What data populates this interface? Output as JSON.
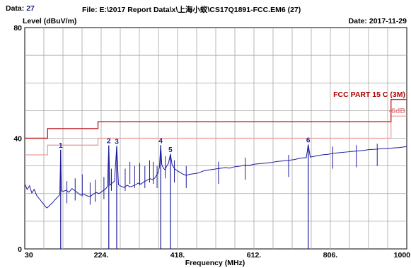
{
  "header": {
    "data_label": "Data:",
    "data_number": "27",
    "file_label": "File:",
    "file_path": "E:\\2017 Report Data\\x\\上海小蚁\\CS17Q1891-FCC.EM6  (27)",
    "date_label": "Date:",
    "date_value": "2017-11-29"
  },
  "colors": {
    "trace": "#1c1c9c",
    "limit": "#c0282a",
    "margin": "#ea9a9a",
    "grid": "#a6a6a6",
    "marker": "#1c1c9c"
  },
  "chart_data": {
    "type": "line",
    "title": "",
    "ylabel": "Level (dBuV/m)",
    "xlabel": "Frequency (MHz)",
    "xlim": [
      30,
      1000
    ],
    "ylim": [
      0,
      80
    ],
    "x_ticks": [
      "30",
      "224.",
      "418.",
      "612.",
      "806.",
      "1000"
    ],
    "y_ticks": [
      "0",
      "40",
      "80"
    ],
    "grid": true,
    "limit_line": {
      "name": "FCC PART 15 C (3M)",
      "points": [
        [
          30,
          40
        ],
        [
          88,
          40
        ],
        [
          88,
          43.5
        ],
        [
          216,
          43.5
        ],
        [
          216,
          46
        ],
        [
          960,
          46
        ],
        [
          960,
          54
        ],
        [
          1000,
          54
        ]
      ]
    },
    "margin_line": {
      "name": "-6dB",
      "points": [
        [
          30,
          34
        ],
        [
          88,
          34
        ],
        [
          88,
          37.5
        ],
        [
          216,
          37.5
        ],
        [
          216,
          40
        ],
        [
          960,
          40
        ],
        [
          960,
          48
        ],
        [
          1000,
          48
        ]
      ]
    },
    "markers": [
      {
        "label": "1",
        "x": 121.2,
        "y": 35.8
      },
      {
        "label": "2",
        "x": 243.4,
        "y": 37.4
      },
      {
        "label": "3",
        "x": 263.5,
        "y": 37.2
      },
      {
        "label": "4",
        "x": 375.2,
        "y": 37.5
      },
      {
        "label": "5",
        "x": 399.9,
        "y": 34.3
      },
      {
        "label": "6",
        "x": 749.8,
        "y": 37.7
      }
    ],
    "series": [
      {
        "x": [
          30,
          36,
          42,
          48,
          54,
          60,
          64,
          70,
          74,
          78,
          82,
          86,
          90,
          95,
          100,
          105,
          110,
          115,
          119,
          121.2,
          123,
          128,
          135,
          142,
          150,
          158,
          165,
          172,
          180,
          188,
          196,
          204,
          212,
          218,
          224,
          230,
          236,
          240,
          243.4,
          246,
          252,
          258,
          263.5,
          268,
          275,
          282,
          290,
          298,
          305,
          312,
          318,
          325,
          332,
          340,
          348,
          356,
          362,
          368,
          372,
          375.2,
          378,
          382,
          386,
          390,
          395,
          399.9,
          404,
          410,
          418,
          425,
          432,
          440,
          450,
          460,
          470,
          480,
          490,
          500,
          510,
          520,
          530,
          540,
          550,
          560,
          570,
          580,
          590,
          600,
          612,
          625,
          640,
          655,
          670,
          685,
          700,
          715,
          730,
          745,
          749.8,
          755,
          770,
          785,
          800,
          815,
          830,
          845,
          860,
          875,
          890,
          905,
          920,
          935,
          950,
          965,
          980,
          990,
          1000
        ],
        "y": [
          23.5,
          21.5,
          22.8,
          20.2,
          21.5,
          19.4,
          18.6,
          17.6,
          16.8,
          16.2,
          15.4,
          14.8,
          15.2,
          16.0,
          16.6,
          17.5,
          18.2,
          19.0,
          19.6,
          35.8,
          21.0,
          20.8,
          21.2,
          20.5,
          21.8,
          21.0,
          20.2,
          19.4,
          19.8,
          19.2,
          18.9,
          19.8,
          20.4,
          20.0,
          20.5,
          21.2,
          21.8,
          22.6,
          37.4,
          23.0,
          23.8,
          24.5,
          37.2,
          23.2,
          22.6,
          22.2,
          23.0,
          22.4,
          22.8,
          23.2,
          23.8,
          23.4,
          24.2,
          24.8,
          25.4,
          25.0,
          26.0,
          27.5,
          29.5,
          37.5,
          30.5,
          29.2,
          28.6,
          29.8,
          31.0,
          34.3,
          30.6,
          29.0,
          28.2,
          27.6,
          27.0,
          26.6,
          27.0,
          27.2,
          27.4,
          28.0,
          28.4,
          28.6,
          28.8,
          29.0,
          29.2,
          29.4,
          29.2,
          29.6,
          29.8,
          30.0,
          30.2,
          30.2,
          30.6,
          30.8,
          31.0,
          31.2,
          31.6,
          31.8,
          32.0,
          32.3,
          32.8,
          33.0,
          37.7,
          33.2,
          33.6,
          34.0,
          34.2,
          34.6,
          34.8,
          35.0,
          35.2,
          35.4,
          35.6,
          35.9,
          36.0,
          36.2,
          36.3,
          36.5,
          36.6,
          36.8,
          37.0
        ]
      }
    ],
    "spikes": [
      {
        "x": 137,
        "y": 24.5
      },
      {
        "x": 158,
        "y": 25.5
      },
      {
        "x": 176,
        "y": 27
      },
      {
        "x": 196,
        "y": 24
      },
      {
        "x": 209,
        "y": 25
      },
      {
        "x": 231,
        "y": 26
      },
      {
        "x": 250,
        "y": 29
      },
      {
        "x": 285,
        "y": 29
      },
      {
        "x": 297,
        "y": 31.5
      },
      {
        "x": 309,
        "y": 30
      },
      {
        "x": 322,
        "y": 31
      },
      {
        "x": 335,
        "y": 30
      },
      {
        "x": 347,
        "y": 32
      },
      {
        "x": 356,
        "y": 31.5
      },
      {
        "x": 366,
        "y": 30
      },
      {
        "x": 387,
        "y": 33.5
      },
      {
        "x": 410,
        "y": 32
      },
      {
        "x": 440,
        "y": 30
      },
      {
        "x": 522,
        "y": 31.5
      },
      {
        "x": 590,
        "y": 33
      },
      {
        "x": 700,
        "y": 34
      },
      {
        "x": 812,
        "y": 37
      },
      {
        "x": 872,
        "y": 37.5
      },
      {
        "x": 925,
        "y": 38
      }
    ]
  }
}
